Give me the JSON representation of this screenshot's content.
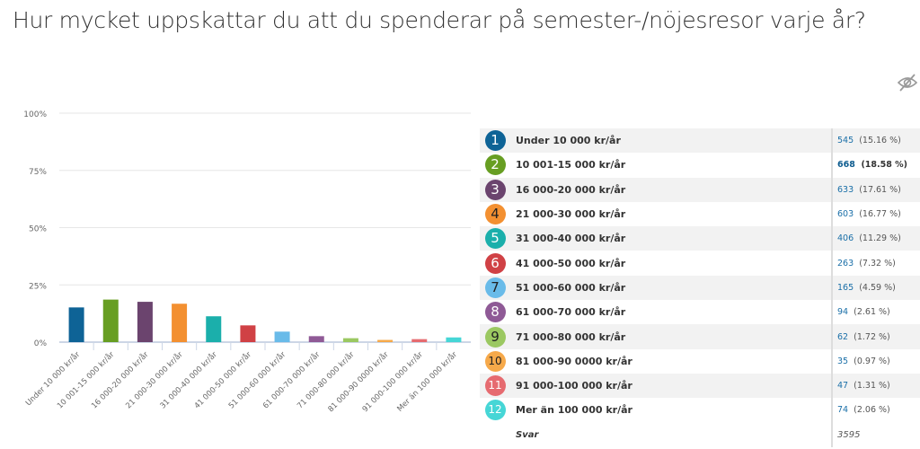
{
  "title": "Hur mycket uppskattar du att du spenderar på semester-/nöjesresor varje år?",
  "hide_icon": "eye-slash-icon",
  "chart_data": {
    "type": "bar",
    "title": "",
    "xlabel": "",
    "ylabel": "",
    "ylim": [
      0,
      100
    ],
    "yticks": [
      "0%",
      "25%",
      "50%",
      "75%",
      "100%"
    ],
    "grid": true,
    "categories": [
      "Under 10 000 kr/år",
      "10 001-15 000 kr/år",
      "16 000-20 000 kr/år",
      "21 000-30 000 kr/år",
      "31 000-40 000 kr/år",
      "41 000-50 000 kr/år",
      "51 000-60 000 kr/år",
      "61 000-70 000 kr/år",
      "71 000-80 000 kr/år",
      "81 000-90 0000 kr/år",
      "91 000-100 000 kr/år",
      "Mer än 100 000 kr/år"
    ],
    "values": [
      15.16,
      18.58,
      17.61,
      16.77,
      11.29,
      7.32,
      4.59,
      2.61,
      1.72,
      0.97,
      1.31,
      2.06
    ],
    "colors": [
      "#0e6396",
      "#679e22",
      "#6b446e",
      "#f39031",
      "#1bafab",
      "#d04145",
      "#69bbe9",
      "#8f5a96",
      "#9bc861",
      "#f6a94a",
      "#e66b70",
      "#46d6d6"
    ]
  },
  "table": {
    "rows": [
      {
        "num": "1",
        "label": "Under 10 000 kr/år",
        "count": "545",
        "pct": "(15.16 %)"
      },
      {
        "num": "2",
        "label": "10 001-15 000 kr/år",
        "count": "668",
        "pct": "(18.58 %)"
      },
      {
        "num": "3",
        "label": "16 000-20 000 kr/år",
        "count": "633",
        "pct": "(17.61 %)"
      },
      {
        "num": "4",
        "label": "21 000-30 000 kr/år",
        "count": "603",
        "pct": "(16.77 %)"
      },
      {
        "num": "5",
        "label": "31 000-40 000 kr/år",
        "count": "406",
        "pct": "(11.29 %)"
      },
      {
        "num": "6",
        "label": "41 000-50 000 kr/år",
        "count": "263",
        "pct": "(7.32 %)"
      },
      {
        "num": "7",
        "label": "51 000-60 000 kr/år",
        "count": "165",
        "pct": "(4.59 %)"
      },
      {
        "num": "8",
        "label": "61 000-70 000 kr/år",
        "count": "94",
        "pct": "(2.61 %)"
      },
      {
        "num": "9",
        "label": "71 000-80 000 kr/år",
        "count": "62",
        "pct": "(1.72 %)"
      },
      {
        "num": "10",
        "label": "81 000-90 0000 kr/år",
        "count": "35",
        "pct": "(0.97 %)"
      },
      {
        "num": "11",
        "label": "91 000-100 000 kr/år",
        "count": "47",
        "pct": "(1.31 %)"
      },
      {
        "num": "12",
        "label": "Mer än 100 000 kr/år",
        "count": "74",
        "pct": "(2.06 %)"
      }
    ],
    "total_label": "Svar",
    "total": "3595"
  }
}
